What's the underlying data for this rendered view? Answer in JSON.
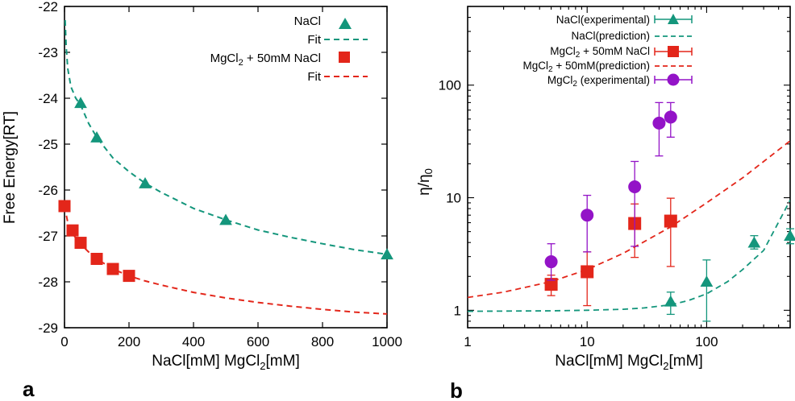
{
  "colors": {
    "green": "#14967c",
    "red": "#e3261a",
    "purple": "#9313c7"
  },
  "chart_data": [
    {
      "type": "scatter",
      "panel_label": "a",
      "xlabel": "NaCl[mM] MgCl₂[mM]",
      "ylabel": "Free Energy[RT]",
      "xlim": [
        0,
        1000
      ],
      "ylim": [
        -29,
        -22
      ],
      "xticks": [
        "0",
        "200",
        "400",
        "600",
        "800",
        "1000"
      ],
      "yticks": [
        "-29",
        "-28",
        "-27",
        "-26",
        "-25",
        "-24",
        "-23",
        "-22"
      ],
      "legend_position": "top-right",
      "series": [
        {
          "name": "NaCl",
          "marker": "triangle",
          "color": "#14967c",
          "x": [
            50,
            100,
            250,
            500,
            1000
          ],
          "y": [
            -24.1,
            -24.85,
            -25.85,
            -26.65,
            -27.4
          ]
        },
        {
          "name": "Fit",
          "style": "dashed",
          "color": "#14967c",
          "x": [
            2,
            5,
            10,
            20,
            35,
            50,
            75,
            100,
            150,
            200,
            250,
            300,
            400,
            500,
            600,
            700,
            800,
            900,
            1000
          ],
          "y": [
            -22.3,
            -22.85,
            -23.35,
            -23.75,
            -24.0,
            -24.15,
            -24.55,
            -24.85,
            -25.3,
            -25.6,
            -25.85,
            -26.05,
            -26.4,
            -26.65,
            -26.87,
            -27.03,
            -27.17,
            -27.3,
            -27.4
          ]
        },
        {
          "name": "MgCl₂ + 50mM NaCl",
          "marker": "square",
          "color": "#e3261a",
          "x": [
            0,
            25,
            50,
            100,
            150,
            200
          ],
          "y": [
            -26.35,
            -26.88,
            -27.15,
            -27.5,
            -27.72,
            -27.87
          ]
        },
        {
          "name": "Fit",
          "style": "dashed",
          "color": "#e3261a",
          "x": [
            0,
            10,
            20,
            35,
            50,
            75,
            100,
            150,
            200,
            250,
            300,
            400,
            500,
            600,
            700,
            800,
            900,
            1000
          ],
          "y": [
            -26.35,
            -26.7,
            -26.88,
            -27.05,
            -27.18,
            -27.35,
            -27.5,
            -27.72,
            -27.87,
            -27.98,
            -28.07,
            -28.23,
            -28.35,
            -28.45,
            -28.53,
            -28.6,
            -28.66,
            -28.7
          ]
        }
      ]
    },
    {
      "type": "scatter",
      "panel_label": "b",
      "xlabel": "NaCl[mM] MgCl₂[mM]",
      "ylabel": "η/η₀",
      "xscale": "log",
      "yscale": "log",
      "xlim": [
        1,
        500
      ],
      "ylim": [
        0.7,
        500
      ],
      "xticks": [
        "1",
        "10",
        "100"
      ],
      "yticks": [
        "1",
        "10",
        "100"
      ],
      "legend_position": "top-right",
      "series": [
        {
          "name": "NaCl(experimental)",
          "marker": "triangle",
          "color": "#14967c",
          "x": [
            50,
            100,
            250,
            500
          ],
          "y": [
            1.2,
            1.8,
            4.0,
            4.6
          ],
          "yerr_low": [
            0.92,
            0.8,
            3.5,
            3.9
          ],
          "yerr_high": [
            1.45,
            2.8,
            4.6,
            5.3
          ]
        },
        {
          "name": "NaCl(prediction)",
          "style": "dashed",
          "color": "#14967c",
          "x": [
            1,
            5,
            10,
            20,
            30,
            50,
            70,
            100,
            150,
            200,
            300,
            500
          ],
          "y": [
            0.98,
            0.99,
            1.0,
            1.02,
            1.05,
            1.12,
            1.22,
            1.4,
            1.8,
            2.3,
            3.4,
            9.5
          ]
        },
        {
          "name": "MgCl₂ + 50mM NaCl",
          "marker": "square",
          "color": "#e3261a",
          "x": [
            5,
            10,
            25,
            50
          ],
          "y": [
            1.7,
            2.2,
            5.9,
            6.2
          ],
          "yerr_low": [
            1.35,
            1.1,
            2.95,
            2.45
          ],
          "yerr_high": [
            2.05,
            3.3,
            8.8,
            9.9
          ]
        },
        {
          "name": "MgCl₂ + 50mM(prediction)",
          "style": "dashed",
          "color": "#e3261a",
          "x": [
            1,
            2,
            5,
            10,
            20,
            50,
            100,
            200,
            500
          ],
          "y": [
            1.3,
            1.45,
            1.8,
            2.3,
            3.2,
            5.5,
            9.0,
            15.0,
            32.0
          ]
        },
        {
          "name": "MgCl₂ (experimental)",
          "marker": "circle",
          "color": "#9313c7",
          "x": [
            5,
            10,
            25,
            40,
            50
          ],
          "y": [
            2.7,
            7.0,
            12.5,
            46.0,
            52.0
          ],
          "yerr_low": [
            1.85,
            3.3,
            3.7,
            23.5,
            34.5
          ],
          "yerr_high": [
            3.9,
            10.5,
            21.0,
            70.0,
            70.0
          ]
        }
      ]
    }
  ]
}
